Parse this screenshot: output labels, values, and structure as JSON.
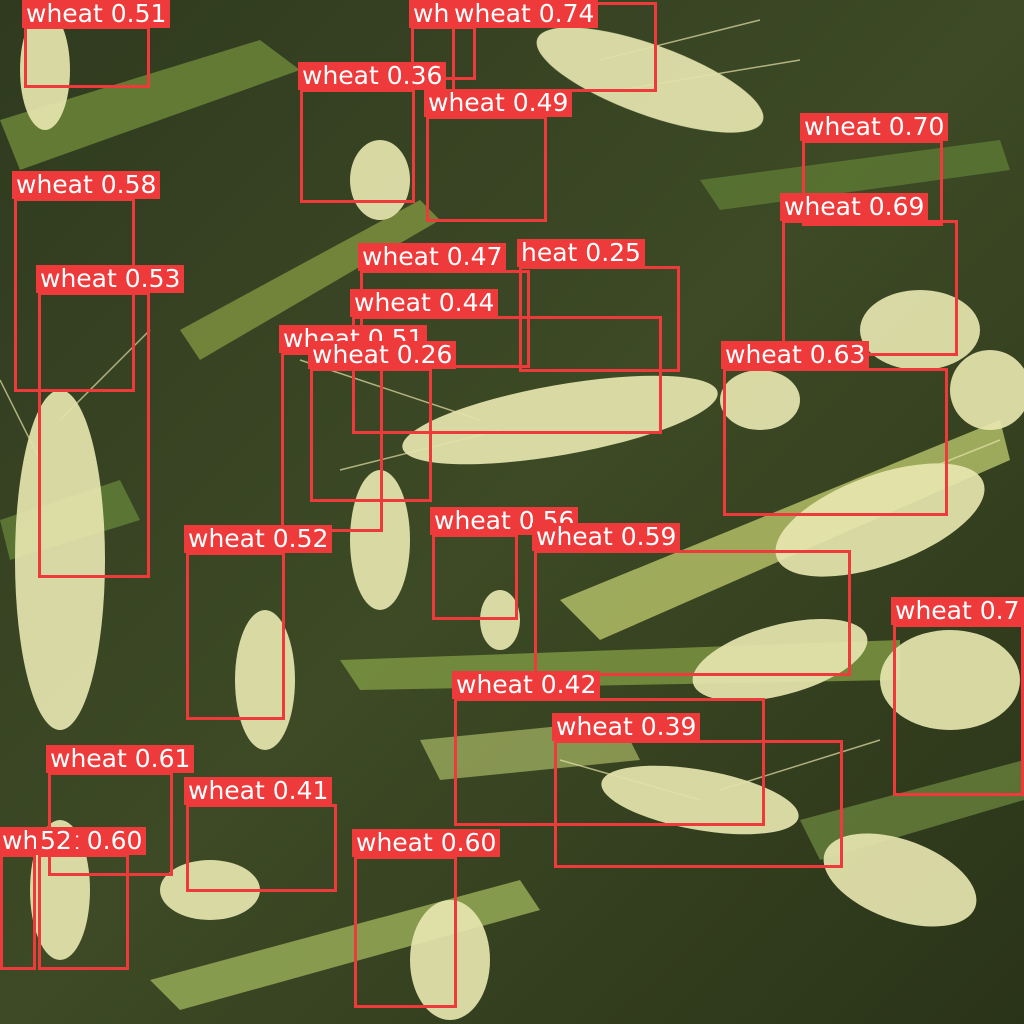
{
  "image": {
    "subject": "wheat field",
    "box_color": "#ee3a3a",
    "label_text_color": "#ffffff"
  },
  "detections": [
    {
      "label": "wheat 0.51"
    },
    {
      "label": "wh"
    },
    {
      "label": "wheat 0.74"
    },
    {
      "label": "wheat 0.36"
    },
    {
      "label": "wheat 0.49"
    },
    {
      "label": "wheat 0.70"
    },
    {
      "label": "wheat 0.58"
    },
    {
      "label": "wheat 0.69"
    },
    {
      "label": "wheat 0.47"
    },
    {
      "label": "heat 0.25"
    },
    {
      "label": "wheat 0.53"
    },
    {
      "label": "wheat 0.44"
    },
    {
      "label": "wheat 0.51"
    },
    {
      "label": "wheat 0.26"
    },
    {
      "label": "wheat 0.63"
    },
    {
      "label": "wheat 0.56"
    },
    {
      "label": "wheat 0.59"
    },
    {
      "label": "wheat 0.52"
    },
    {
      "label": "wheat 0.7"
    },
    {
      "label": "wheat 0.42"
    },
    {
      "label": "wheat 0.39"
    },
    {
      "label": "wheat 0.61"
    },
    {
      "label": "wheat 0.41"
    },
    {
      "label": "wheat 0.60"
    },
    {
      "label": "52"
    },
    {
      "label": "wheat 0.60"
    }
  ]
}
